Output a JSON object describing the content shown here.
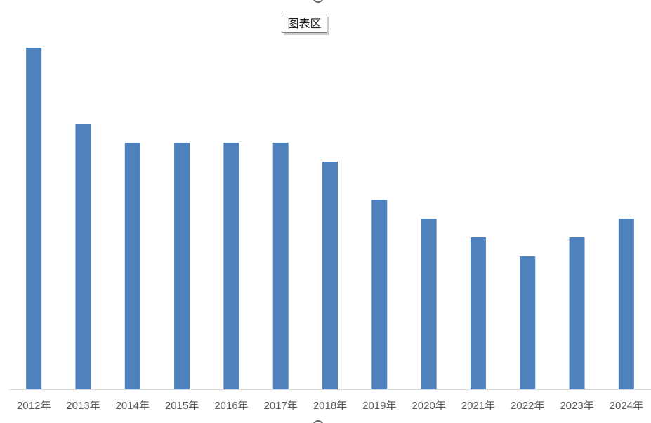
{
  "chart_data": {
    "type": "bar",
    "tooltip": "图表区",
    "categories": [
      "2012年",
      "2013年",
      "2014年",
      "2015年",
      "2016年",
      "2017年",
      "2018年",
      "2019年",
      "2020年",
      "2021年",
      "2022年",
      "2023年",
      "2024年"
    ],
    "values": [
      18,
      14,
      13,
      13,
      13,
      13,
      12,
      10,
      9,
      8,
      7,
      8,
      9
    ],
    "color": "#4f81bd",
    "ylim": [
      0,
      18
    ]
  }
}
